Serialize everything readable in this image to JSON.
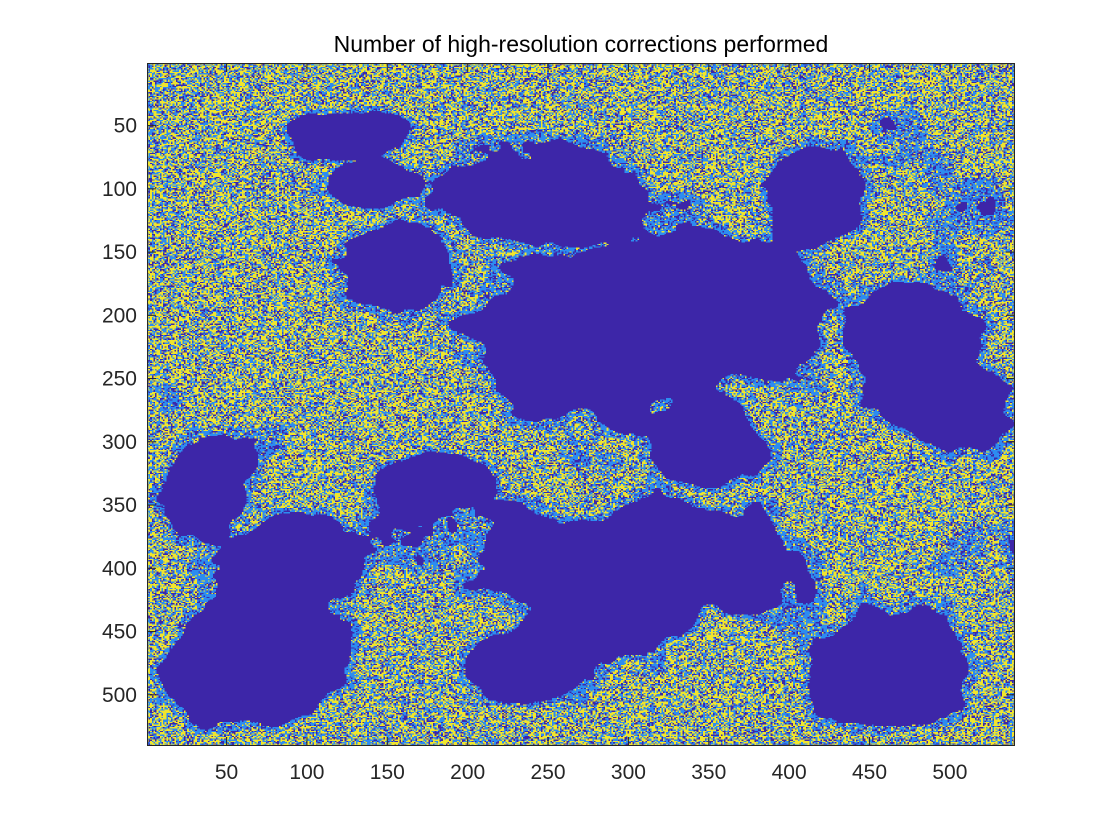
{
  "chart_data": {
    "type": "heatmap",
    "title": "Number of high-resolution corrections performed",
    "xlabel": "",
    "ylabel": "",
    "xlim": [
      0.5,
      540.5
    ],
    "ylim": [
      0.5,
      540.5
    ],
    "y_reversed": true,
    "x_ticks": [
      50,
      100,
      150,
      200,
      250,
      300,
      350,
      400,
      450,
      500
    ],
    "y_ticks": [
      50,
      100,
      150,
      200,
      250,
      300,
      350,
      400,
      450,
      500
    ],
    "x_tick_labels": [
      "50",
      "100",
      "150",
      "200",
      "250",
      "300",
      "350",
      "400",
      "450",
      "500"
    ],
    "y_tick_labels": [
      "50",
      "100",
      "150",
      "200",
      "250",
      "300",
      "350",
      "400",
      "450",
      "500"
    ],
    "grid": false,
    "legend": "none",
    "colormap": "parula",
    "value_levels": [
      0,
      1,
      2
    ],
    "level_colors": [
      "#3d26a8",
      "#2d8cf0",
      "#f0e52d"
    ],
    "grid_size": [
      540,
      540
    ]
  }
}
